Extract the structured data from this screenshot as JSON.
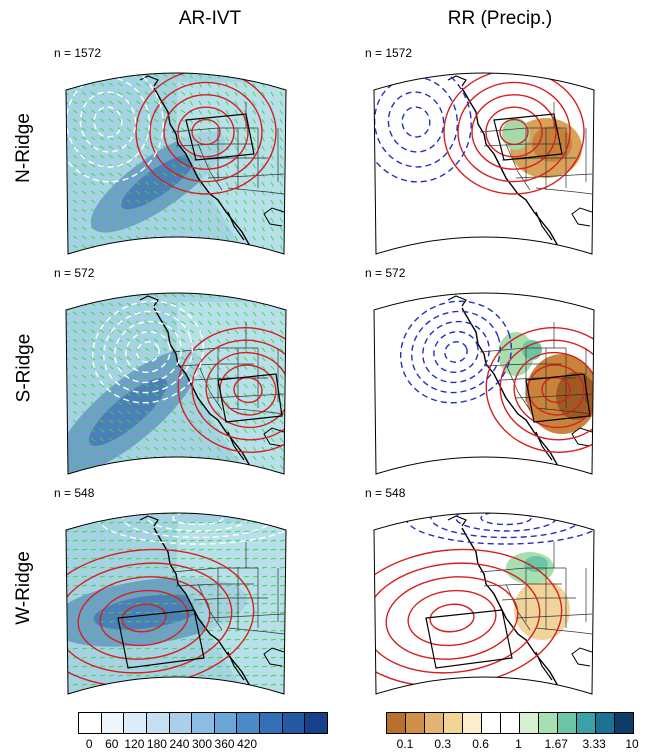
{
  "columns": [
    "AR-IVT",
    "RR (Precip.)"
  ],
  "rows": [
    {
      "label": "N-Ridge",
      "n": "n = 1572"
    },
    {
      "label": "S-Ridge",
      "n": "n = 572"
    },
    {
      "label": "W-Ridge",
      "n": "n = 548"
    }
  ],
  "colorbar_ivt": {
    "colors": [
      "#ffffff",
      "#eef6fc",
      "#dcecf8",
      "#c6e0f3",
      "#a9cfec",
      "#8bbde4",
      "#6aa6d8",
      "#4b8bc9",
      "#3370b7",
      "#2459a3",
      "#17408a"
    ],
    "labels": [
      "0",
      "60",
      "120",
      "180",
      "240",
      "300",
      "360",
      "420"
    ]
  },
  "colorbar_rr": {
    "colors": [
      "#b8702a",
      "#cf914a",
      "#e3b371",
      "#f2d495",
      "#faeecd",
      "#ffffff",
      "#ffffff",
      "#d6f0d0",
      "#a6dfb0",
      "#6cc5a6",
      "#3aa1a9",
      "#1c7295",
      "#0b3d66"
    ],
    "labels": [
      "0.1",
      "0.3",
      "0.6",
      "1",
      "1.67",
      "3.33",
      "10"
    ]
  },
  "colors": {
    "positive_contour": "#d42020",
    "negative_contour_ivt": "#ffffff",
    "negative_contour_rr": "#2030c0",
    "vectors": "#33dd33"
  }
}
